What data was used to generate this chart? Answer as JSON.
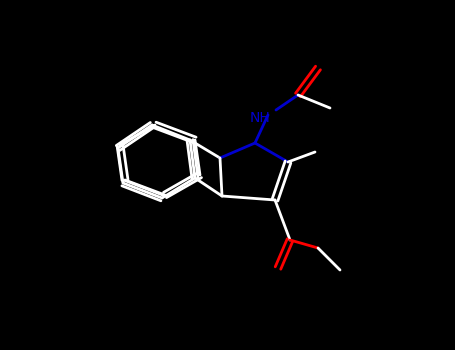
{
  "bg": "#000000",
  "bond_color": "#ffffff",
  "N_color": "#0000cd",
  "O_color": "#ff0000",
  "lw": 2.0,
  "figw": 4.55,
  "figh": 3.5,
  "dpi": 100
}
